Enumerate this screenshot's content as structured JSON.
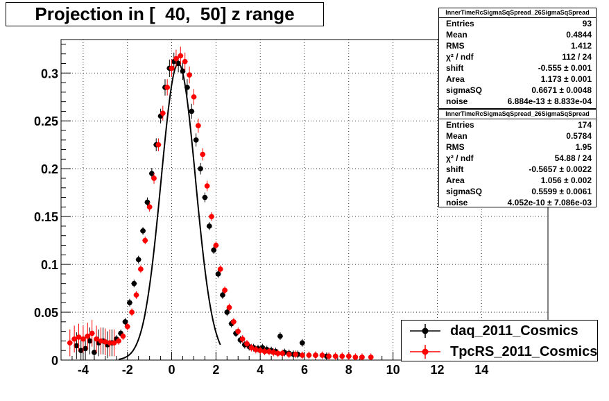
{
  "title": "Projection in [  40,  50] z range",
  "stats": [
    {
      "name": "InnerTimeRcSigmaSqSpread_26SigmaSqSpread",
      "rows": [
        {
          "label": "Entries",
          "value": "93"
        },
        {
          "label": "Mean",
          "value": "0.4844"
        },
        {
          "label": "RMS",
          "value": "1.412"
        },
        {
          "label": "χ² / ndf",
          "value": "112 / 24"
        },
        {
          "label": "shift",
          "value": "-0.555 ± 0.001"
        },
        {
          "label": "Area",
          "value": "1.173 ± 0.001"
        },
        {
          "label": "sigmaSQ",
          "value": "0.6671 ± 0.0048"
        },
        {
          "label": "noise",
          "value": "6.884e-13 ± 8.833e-04"
        }
      ]
    },
    {
      "name": "InnerTimeRcSigmaSqSpread_26SigmaSqSpread",
      "rows": [
        {
          "label": "Entries",
          "value": "174"
        },
        {
          "label": "Mean",
          "value": "0.5784"
        },
        {
          "label": "RMS",
          "value": "1.95"
        },
        {
          "label": "χ² / ndf",
          "value": "54.88 / 24"
        },
        {
          "label": "shift",
          "value": "-0.5657 ± 0.0022"
        },
        {
          "label": "Area",
          "value": "1.056 ± 0.002"
        },
        {
          "label": "sigmaSQ",
          "value": "0.5599 ± 0.0061"
        },
        {
          "label": "noise",
          "value": "4.052e-10 ± 7.086e-03"
        }
      ]
    }
  ],
  "legend": [
    {
      "label": "daq_2011_Cosmics",
      "color": "#000000"
    },
    {
      "label": "TpcRS_2011_Cosmics",
      "color": "#ff0000"
    }
  ],
  "chart_data": {
    "type": "scatter",
    "xlim": [
      -5,
      17
    ],
    "ylim": [
      0,
      0.335
    ],
    "x_major_ticks": [
      -4,
      -2,
      0,
      2,
      4,
      6,
      8,
      10,
      12,
      14
    ],
    "x_tick_labels": [
      "-4",
      "-2",
      "0",
      "2",
      "4",
      "6",
      "8",
      "10",
      "12",
      "14"
    ],
    "y_major_ticks": [
      0,
      0.05,
      0.1,
      0.15,
      0.2,
      0.25,
      0.3
    ],
    "y_tick_labels": [
      "0",
      "0.05",
      "0.1",
      "0.15",
      "0.2",
      "0.25",
      "0.3"
    ],
    "grid": true,
    "series": [
      {
        "name": "daq_2011_Cosmics",
        "color": "#000000",
        "x": [
          -4.3,
          -4.1,
          -3.9,
          -3.7,
          -3.5,
          -3.3,
          -3.1,
          -2.9,
          -2.7,
          -2.5,
          -2.3,
          -2.1,
          -1.9,
          -1.7,
          -1.5,
          -1.3,
          -1.1,
          -0.9,
          -0.7,
          -0.5,
          -0.3,
          -0.1,
          0.1,
          0.3,
          0.5,
          0.7,
          0.9,
          1.1,
          1.3,
          1.5,
          1.7,
          1.9,
          2.1,
          2.3,
          2.5,
          2.7,
          2.9,
          3.1,
          3.3,
          3.5,
          3.7,
          3.9,
          4.1,
          4.3,
          4.5,
          4.7,
          4.9,
          5.1,
          5.3,
          5.5,
          5.7,
          5.9,
          6.5,
          7.0
        ],
        "y": [
          0.015,
          0.01,
          0.012,
          0.02,
          0.008,
          0.018,
          0.02,
          0.016,
          0.018,
          0.022,
          0.028,
          0.04,
          0.06,
          0.08,
          0.105,
          0.135,
          0.165,
          0.195,
          0.225,
          0.255,
          0.285,
          0.305,
          0.312,
          0.31,
          0.302,
          0.285,
          0.26,
          0.23,
          0.2,
          0.17,
          0.14,
          0.115,
          0.09,
          0.068,
          0.05,
          0.038,
          0.028,
          0.021,
          0.016,
          0.014,
          0.013,
          0.012,
          0.013,
          0.011,
          0.01,
          0.009,
          0.025,
          0.008,
          0.007,
          0.006,
          0.006,
          0.018,
          0.005,
          0.004
        ]
      },
      {
        "name": "TpcRS_2011_Cosmics",
        "color": "#ff0000",
        "x": [
          -4.6,
          -4.4,
          -4.2,
          -4.0,
          -3.8,
          -3.6,
          -3.4,
          -3.2,
          -3.0,
          -2.8,
          -2.6,
          -2.4,
          -2.2,
          -2.0,
          -1.8,
          -1.6,
          -1.4,
          -1.2,
          -1.0,
          -0.8,
          -0.6,
          -0.4,
          -0.2,
          0.0,
          0.2,
          0.4,
          0.6,
          0.8,
          1.0,
          1.2,
          1.4,
          1.6,
          1.8,
          2.0,
          2.2,
          2.4,
          2.6,
          2.8,
          3.0,
          3.2,
          3.4,
          3.6,
          3.8,
          4.0,
          4.2,
          4.4,
          4.6,
          4.8,
          5.0,
          5.3,
          5.6,
          5.9,
          6.2,
          6.5,
          6.8,
          7.1,
          7.4,
          7.7,
          8.0,
          8.3,
          8.6,
          9.0
        ],
        "y": [
          0.018,
          0.022,
          0.024,
          0.022,
          0.025,
          0.028,
          0.022,
          0.02,
          0.019,
          0.018,
          0.018,
          0.02,
          0.025,
          0.035,
          0.05,
          0.068,
          0.095,
          0.125,
          0.16,
          0.19,
          0.225,
          0.258,
          0.285,
          0.305,
          0.315,
          0.318,
          0.312,
          0.298,
          0.275,
          0.245,
          0.215,
          0.182,
          0.15,
          0.12,
          0.095,
          0.073,
          0.055,
          0.04,
          0.03,
          0.022,
          0.017,
          0.013,
          0.011,
          0.01,
          0.009,
          0.009,
          0.008,
          0.007,
          0.007,
          0.006,
          0.006,
          0.005,
          0.005,
          0.005,
          0.005,
          0.004,
          0.004,
          0.004,
          0.004,
          0.003,
          0.003,
          0.003
        ]
      }
    ]
  }
}
